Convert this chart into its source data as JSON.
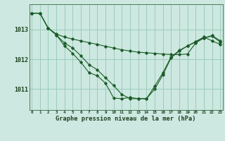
{
  "xlabel_label": "Graphe pression niveau de la mer (hPa)",
  "bg_color": "#cde8e0",
  "grid_color": "#99ccbb",
  "line_color": "#1a5c28",
  "x_ticks": [
    0,
    1,
    2,
    3,
    4,
    5,
    6,
    7,
    8,
    9,
    10,
    11,
    12,
    13,
    14,
    15,
    16,
    17,
    18,
    19,
    20,
    21,
    22,
    23
  ],
  "ylim": [
    1010.3,
    1013.85
  ],
  "yticks": [
    1011,
    1012,
    1013
  ],
  "series1": [
    1013.55,
    1013.55,
    1013.05,
    1012.85,
    1012.75,
    1012.68,
    1012.62,
    1012.56,
    1012.5,
    1012.44,
    1012.38,
    1012.32,
    1012.28,
    1012.24,
    1012.22,
    1012.2,
    1012.18,
    1012.16,
    1012.16,
    1012.18,
    1012.55,
    1012.72,
    1012.8,
    1012.62
  ],
  "series2": [
    1013.55,
    1013.55,
    1013.05,
    1012.82,
    1012.45,
    1012.2,
    1011.9,
    1011.55,
    1011.45,
    1011.2,
    1010.7,
    1010.68,
    1010.72,
    1010.68,
    1010.68,
    1011.1,
    1011.55,
    1012.08,
    1012.3,
    1012.45,
    1012.6,
    1012.75,
    1012.62,
    1012.5
  ],
  "series3": [
    1013.55,
    1013.55,
    1013.05,
    1012.82,
    1012.55,
    1012.38,
    1012.12,
    1011.82,
    1011.65,
    1011.38,
    1011.12,
    1010.82,
    1010.68,
    1010.68,
    1010.68,
    1011.0,
    1011.48,
    1012.05,
    1012.28,
    1012.45,
    1012.58,
    1012.72,
    1012.78,
    1012.58
  ]
}
